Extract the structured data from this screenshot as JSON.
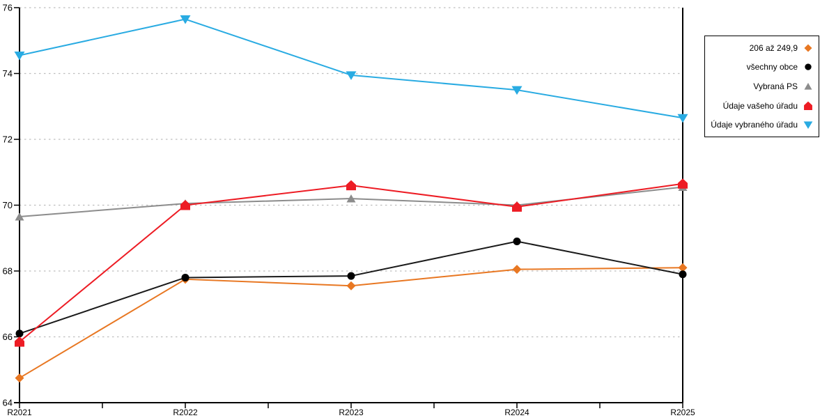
{
  "chart_data": {
    "type": "line",
    "title": "",
    "xlabel": "",
    "ylabel": "",
    "categories": [
      "R2021",
      "R2022",
      "R2023",
      "R2024",
      "R2025"
    ],
    "series": [
      {
        "name": "206 až 249,9",
        "color": "#E87722",
        "marker": "diamond",
        "values": [
          64.75,
          67.75,
          67.55,
          68.05,
          68.1
        ]
      },
      {
        "name": "všechny obce",
        "color": "#1A1A1A",
        "marker": "circle",
        "marker_color": "#000000",
        "values": [
          66.1,
          67.8,
          67.85,
          68.9,
          67.9
        ]
      },
      {
        "name": "Vybraná PS",
        "color": "#8C8C8C",
        "marker": "triangle-up",
        "values": [
          69.65,
          70.05,
          70.2,
          70.0,
          70.55
        ]
      },
      {
        "name": "Údaje vašeho úřadu",
        "color": "#ED1C24",
        "marker": "pentagon",
        "values": [
          65.85,
          70.0,
          70.6,
          69.95,
          70.65
        ]
      },
      {
        "name": "Údaje vybraného úřadu",
        "color": "#29ABE2",
        "marker": "triangle-down",
        "values": [
          74.55,
          75.65,
          73.95,
          73.5,
          72.65
        ]
      }
    ],
    "ylim": [
      64,
      76
    ],
    "ytick_step": 2,
    "ytick_labels": [
      "64",
      "66",
      "68",
      "70",
      "72",
      "74",
      "76"
    ],
    "grid": "horizontal-dotted",
    "legend_position": "top-right",
    "axis_color": "#000000",
    "gridline_color": "#BDBDBD",
    "background_color": "#FFFFFF"
  }
}
